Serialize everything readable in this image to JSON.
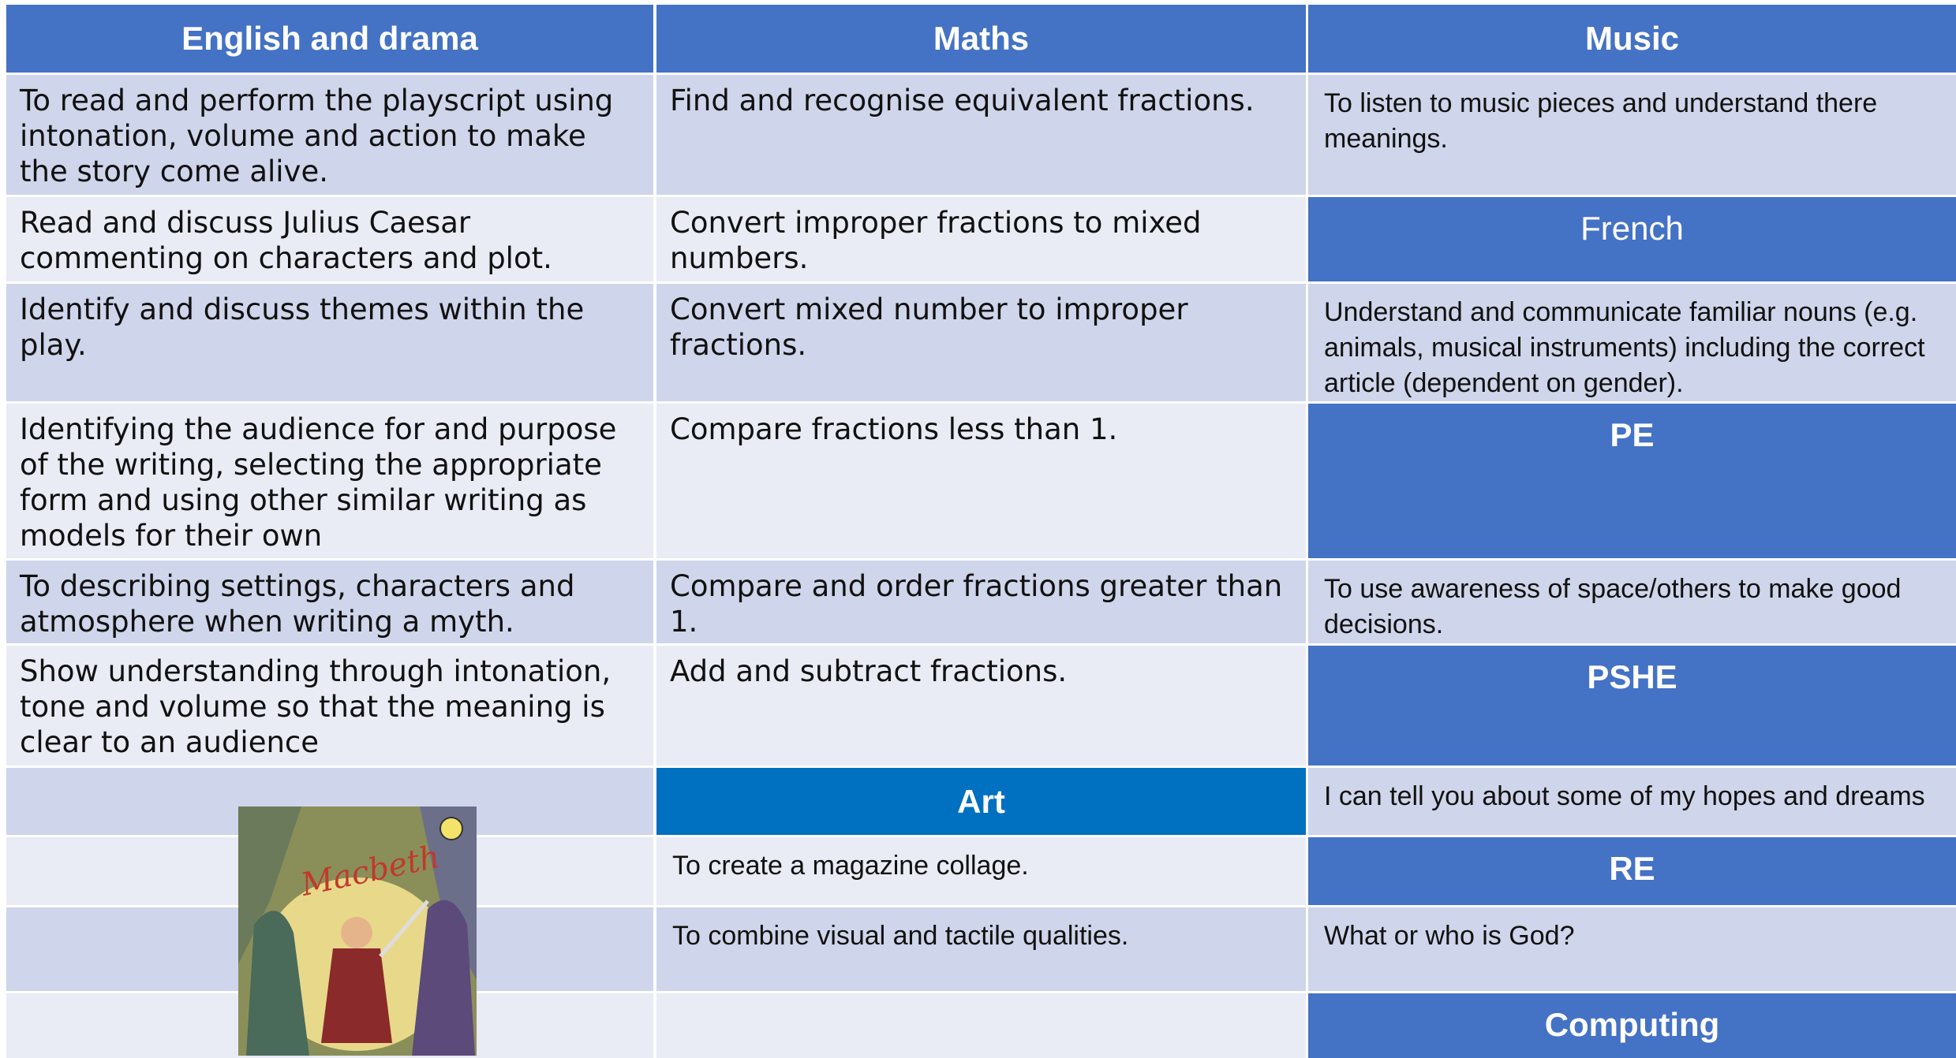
{
  "english": {
    "header": "English and drama",
    "items": [
      "To read and perform the playscript using intonation, volume and action to make the story come alive.",
      "Read and discuss Julius Caesar commenting on characters and plot.",
      "Identify and discuss themes within the play.",
      "Identifying the audience for and purpose of the writing, selecting the appropriate form and using other similar writing as models for their own",
      "To describing settings, characters and atmosphere when writing a myth.",
      "Show understanding through intonation, tone and volume so that the meaning is clear to an audience"
    ],
    "cover_title": "Macbeth"
  },
  "maths": {
    "header": "Maths",
    "items": [
      "Find and recognise equivalent fractions.",
      "Convert improper fractions to mixed numbers.",
      "Convert mixed number to improper fractions.",
      "Compare fractions less than 1.",
      "Compare and order fractions greater than 1.",
      "Add and subtract fractions."
    ]
  },
  "art": {
    "header": "Art",
    "items": [
      "To create a magazine collage.",
      "To combine visual and tactile qualities."
    ]
  },
  "sections": [
    {
      "heading": "Music",
      "text": "To listen to music pieces and understand there meanings."
    },
    {
      "heading": "French",
      "text": "Understand and communicate familiar nouns (e.g. animals, musical instruments) including the correct article (dependent on gender)."
    },
    {
      "heading": "PE",
      "text": "To use awareness of space/others to make good decisions."
    },
    {
      "heading": "PSHE",
      "text": "I can tell you about some of my hopes and dreams"
    },
    {
      "heading": "RE",
      "text": "What or who is God?"
    },
    {
      "heading": "Computing"
    }
  ]
}
